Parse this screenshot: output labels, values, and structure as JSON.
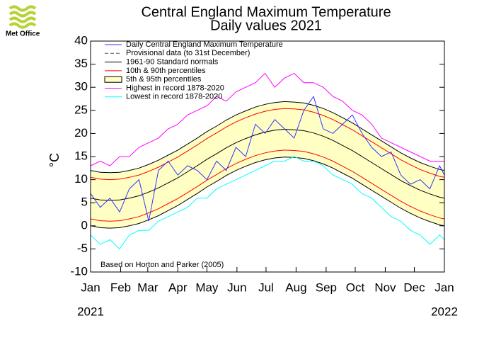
{
  "chart_data": {
    "type": "line",
    "logo": "Met Office",
    "title": "Central England Maximum Temperature",
    "subtitle": "Daily values 2021",
    "ylabel": "°C",
    "note": "Based on Horton and Parker (2005)",
    "year_labels": [
      "2021",
      "2022"
    ],
    "xlim": [
      0,
      365
    ],
    "xticks": [
      {
        "value": 0,
        "label": "Jan"
      },
      {
        "value": 31,
        "label": "Feb"
      },
      {
        "value": 59,
        "label": "Mar"
      },
      {
        "value": 90,
        "label": "Apr"
      },
      {
        "value": 120,
        "label": "May"
      },
      {
        "value": 151,
        "label": "Jun"
      },
      {
        "value": 181,
        "label": "Jul"
      },
      {
        "value": 212,
        "label": "Aug"
      },
      {
        "value": 243,
        "label": "Sep"
      },
      {
        "value": 273,
        "label": "Oct"
      },
      {
        "value": 304,
        "label": "Nov"
      },
      {
        "value": 334,
        "label": "Dec"
      },
      {
        "value": 365,
        "label": "Jan"
      }
    ],
    "ylim": [
      -10,
      40
    ],
    "yticks": [
      -10,
      -5,
      0,
      5,
      10,
      15,
      20,
      25,
      30,
      35,
      40
    ],
    "grid": false,
    "legend": "top-left",
    "x": [
      0,
      10,
      20,
      30,
      40,
      50,
      60,
      70,
      80,
      90,
      100,
      110,
      120,
      130,
      140,
      150,
      160,
      170,
      180,
      190,
      200,
      210,
      220,
      230,
      240,
      250,
      260,
      270,
      280,
      290,
      300,
      310,
      320,
      330,
      340,
      350,
      360,
      365
    ],
    "series": [
      {
        "name": "Daily Central England Maximum Temperature",
        "color": "#3333ff",
        "values": [
          7,
          4,
          6,
          3,
          8,
          10,
          1,
          12,
          14,
          11,
          13,
          12,
          10,
          14,
          12,
          17,
          15,
          22,
          20,
          23,
          21,
          19,
          25,
          28,
          21,
          20,
          22,
          24,
          20,
          17,
          15,
          16,
          11,
          9,
          10,
          8,
          13,
          11
        ]
      },
      {
        "name": "Provisional data (to 31st December)",
        "color": "#555555",
        "dash": true,
        "values": [
          null,
          null,
          null,
          null,
          null,
          null,
          null,
          null,
          null,
          null,
          null,
          null,
          null,
          null,
          null,
          null,
          null,
          null,
          null,
          null,
          null,
          null,
          null,
          null,
          null,
          null,
          null,
          null,
          null,
          null,
          null,
          null,
          null,
          null,
          null,
          null,
          null,
          null
        ]
      },
      {
        "name": "1961-90 Standard normals",
        "color": "#000000",
        "values": [
          6.0,
          5.6,
          5.5,
          5.6,
          6.0,
          6.5,
          7.3,
          8.2,
          9.3,
          10.4,
          11.7,
          13.0,
          14.4,
          15.6,
          16.9,
          18.0,
          18.9,
          19.7,
          20.3,
          20.7,
          20.9,
          20.8,
          20.6,
          20.1,
          19.4,
          18.5,
          17.4,
          16.3,
          15.0,
          13.7,
          12.4,
          11.1,
          9.8,
          8.7,
          7.7,
          6.9,
          6.2,
          6.0
        ]
      },
      {
        "name": "10th & 90th percentiles",
        "color": "#ff0000",
        "lower": [
          1.5,
          1.1,
          1.0,
          1.1,
          1.5,
          2.0,
          2.8,
          3.7,
          4.8,
          5.9,
          7.2,
          8.5,
          9.9,
          11.1,
          12.4,
          13.5,
          14.4,
          15.2,
          15.8,
          16.2,
          16.4,
          16.3,
          16.1,
          15.6,
          14.9,
          14.0,
          12.9,
          11.8,
          10.5,
          9.2,
          7.9,
          6.6,
          5.3,
          4.2,
          3.2,
          2.4,
          1.7,
          1.5
        ],
        "upper": [
          10.5,
          10.1,
          10.0,
          10.1,
          10.5,
          11.0,
          11.8,
          12.7,
          13.8,
          14.9,
          16.2,
          17.5,
          18.9,
          20.1,
          21.4,
          22.5,
          23.4,
          24.2,
          24.8,
          25.2,
          25.4,
          25.3,
          25.1,
          24.6,
          23.9,
          23.0,
          21.9,
          20.8,
          19.5,
          18.2,
          16.9,
          15.6,
          14.3,
          13.2,
          12.2,
          11.4,
          10.7,
          10.5
        ]
      },
      {
        "name": "5th & 95th percentiles",
        "color": "#000000",
        "fill": "#ffffc4",
        "lower": [
          0.0,
          -0.4,
          -0.5,
          -0.4,
          0.0,
          0.5,
          1.3,
          2.2,
          3.3,
          4.4,
          5.7,
          7.0,
          8.4,
          9.6,
          10.9,
          12.0,
          12.9,
          13.7,
          14.3,
          14.7,
          14.9,
          14.8,
          14.6,
          14.1,
          13.4,
          12.5,
          11.4,
          10.3,
          9.0,
          7.7,
          6.4,
          5.1,
          3.8,
          2.7,
          1.7,
          0.9,
          0.2,
          0.0
        ],
        "upper": [
          12.0,
          11.6,
          11.5,
          11.6,
          12.0,
          12.5,
          13.3,
          14.2,
          15.3,
          16.4,
          17.7,
          19.0,
          20.4,
          21.6,
          22.9,
          24.0,
          24.9,
          25.7,
          26.3,
          26.7,
          26.9,
          26.8,
          26.6,
          26.1,
          25.4,
          24.5,
          23.4,
          22.3,
          21.0,
          19.7,
          18.4,
          17.1,
          15.8,
          14.7,
          13.7,
          12.9,
          12.2,
          12.0
        ]
      },
      {
        "name": "Highest in record 1878-2020",
        "color": "#ff00ff",
        "values": [
          13,
          14,
          13,
          15,
          15,
          17,
          18,
          19,
          21,
          22,
          24,
          25,
          26,
          28,
          27,
          29,
          30,
          31,
          33,
          30,
          32,
          33,
          31,
          31,
          30,
          28,
          27,
          25,
          24,
          22,
          19,
          18,
          17,
          16,
          15,
          14,
          14,
          14
        ]
      },
      {
        "name": "Lowest in record 1878-2020",
        "color": "#00ffff",
        "values": [
          -2,
          -4,
          -3,
          -5,
          -2,
          -1,
          -1,
          1,
          2,
          3,
          4,
          6,
          6,
          8,
          9,
          10,
          11,
          12,
          13,
          14,
          14,
          15,
          14,
          14,
          13,
          11,
          10,
          9,
          7,
          6,
          4,
          2,
          1,
          -1,
          -2,
          -4,
          -2,
          -3
        ]
      }
    ]
  }
}
